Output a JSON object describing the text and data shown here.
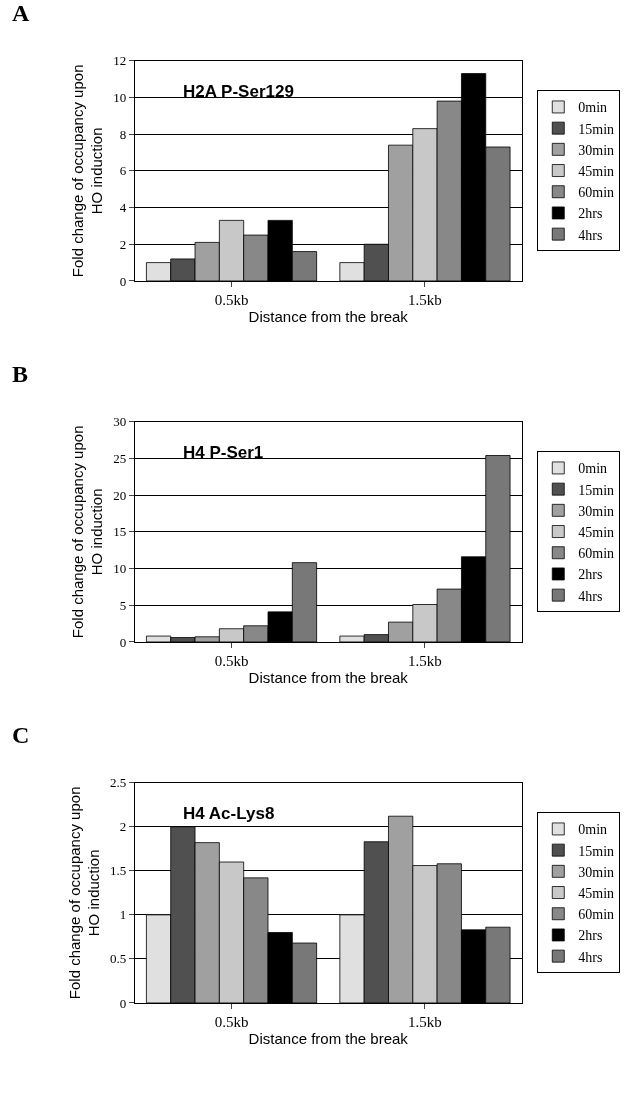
{
  "chart_data": [
    {
      "type": "bar",
      "title": "A",
      "subtitle": "H2A P-Ser129",
      "xlabel": "Distance from the break",
      "ylabel": "Fold change of occupancy upon HO induction",
      "categories": [
        "0.5kb",
        "1.5kb"
      ],
      "series": [
        {
          "name": "0min",
          "color": "#e0e0e0",
          "values": [
            1.0,
            1.0
          ]
        },
        {
          "name": "15min",
          "color": "#505050",
          "values": [
            1.2,
            2.0
          ]
        },
        {
          "name": "30min",
          "color": "#a0a0a0",
          "values": [
            2.1,
            7.4
          ]
        },
        {
          "name": "45min",
          "color": "#c8c8c8",
          "values": [
            3.3,
            8.3
          ]
        },
        {
          "name": "60min",
          "color": "#888888",
          "values": [
            2.5,
            9.8
          ]
        },
        {
          "name": "2hrs",
          "color": "#000000",
          "values": [
            3.3,
            11.3
          ]
        },
        {
          "name": "4hrs",
          "color": "#787878",
          "values": [
            1.6,
            7.3
          ]
        }
      ],
      "ylim": [
        0,
        12
      ],
      "yticks": [
        0,
        2,
        4,
        6,
        8,
        10,
        12
      ],
      "grid": "y",
      "legend": "right"
    },
    {
      "type": "bar",
      "title": "B",
      "subtitle": "H4 P-Ser1",
      "xlabel": "Distance from the break",
      "ylabel": "Fold change of occupancy upon HO induction",
      "categories": [
        "0.5kb",
        "1.5kb"
      ],
      "series": [
        {
          "name": "0min",
          "color": "#e0e0e0",
          "values": [
            0.8,
            0.8
          ]
        },
        {
          "name": "15min",
          "color": "#505050",
          "values": [
            0.6,
            1.0
          ]
        },
        {
          "name": "30min",
          "color": "#a0a0a0",
          "values": [
            0.7,
            2.7
          ]
        },
        {
          "name": "45min",
          "color": "#c8c8c8",
          "values": [
            1.8,
            5.1
          ]
        },
        {
          "name": "60min",
          "color": "#888888",
          "values": [
            2.2,
            7.2
          ]
        },
        {
          "name": "2hrs",
          "color": "#000000",
          "values": [
            4.1,
            11.6
          ]
        },
        {
          "name": "4hrs",
          "color": "#787878",
          "values": [
            10.8,
            25.4
          ]
        }
      ],
      "ylim": [
        0,
        30
      ],
      "yticks": [
        0,
        5,
        10,
        15,
        20,
        25,
        30
      ],
      "grid": "y",
      "legend": "right"
    },
    {
      "type": "bar",
      "title": "C",
      "subtitle": "H4 Ac-Lys8",
      "xlabel": "Distance from the break",
      "ylabel": "Fold change of occupancy upon HO induction",
      "categories": [
        "0.5kb",
        "1.5kb"
      ],
      "series": [
        {
          "name": "0min",
          "color": "#e0e0e0",
          "values": [
            1.0,
            1.0
          ]
        },
        {
          "name": "15min",
          "color": "#505050",
          "values": [
            2.0,
            1.83
          ]
        },
        {
          "name": "30min",
          "color": "#a0a0a0",
          "values": [
            1.82,
            2.12
          ]
        },
        {
          "name": "45min",
          "color": "#c8c8c8",
          "values": [
            1.6,
            1.56
          ]
        },
        {
          "name": "60min",
          "color": "#888888",
          "values": [
            1.42,
            1.58
          ]
        },
        {
          "name": "2hrs",
          "color": "#000000",
          "values": [
            0.8,
            0.83
          ]
        },
        {
          "name": "4hrs",
          "color": "#787878",
          "values": [
            0.68,
            0.86
          ]
        }
      ],
      "ylim": [
        0,
        2.5
      ],
      "yticks": [
        0,
        0.5,
        1,
        1.5,
        2,
        2.5
      ],
      "grid": "y",
      "legend": "right"
    }
  ]
}
